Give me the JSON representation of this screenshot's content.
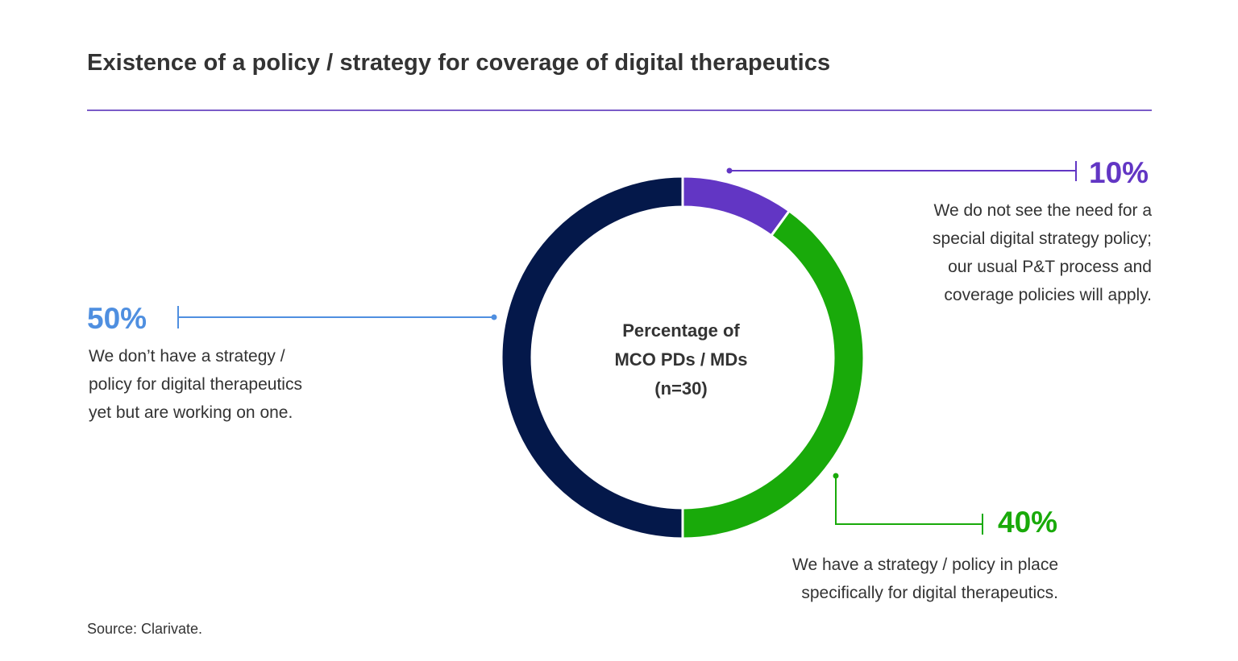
{
  "title": "Existence of a policy / strategy for coverage of digital therapeutics",
  "source": "Source: Clarivate.",
  "colors": {
    "title_rule": "#7b5cc8",
    "text": "#333333"
  },
  "chart_data": {
    "type": "pie",
    "variant": "donut",
    "title": "Existence of a policy / strategy for coverage of digital therapeutics",
    "center_label": [
      "Percentage of",
      "MCO PDs / MDs",
      "(n=30)"
    ],
    "slices": [
      {
        "value": 10,
        "label": "10%",
        "color": "#6236c4",
        "label_color": "#6236c4",
        "description": [
          "We do not see the need for a",
          "special digital strategy policy;",
          "our usual P&T process and",
          "coverage policies will apply."
        ]
      },
      {
        "value": 40,
        "label": "40%",
        "color": "#19aa0a",
        "label_color": "#19aa0a",
        "description": [
          "We have a strategy / policy in place",
          "specifically for digital therapeutics."
        ]
      },
      {
        "value": 50,
        "label": "50%",
        "color": "#04184a",
        "label_color": "#4f8fe0",
        "description": [
          "We don’t have a strategy /",
          "policy for digital therapeutics",
          "yet but are working on one."
        ]
      }
    ]
  }
}
